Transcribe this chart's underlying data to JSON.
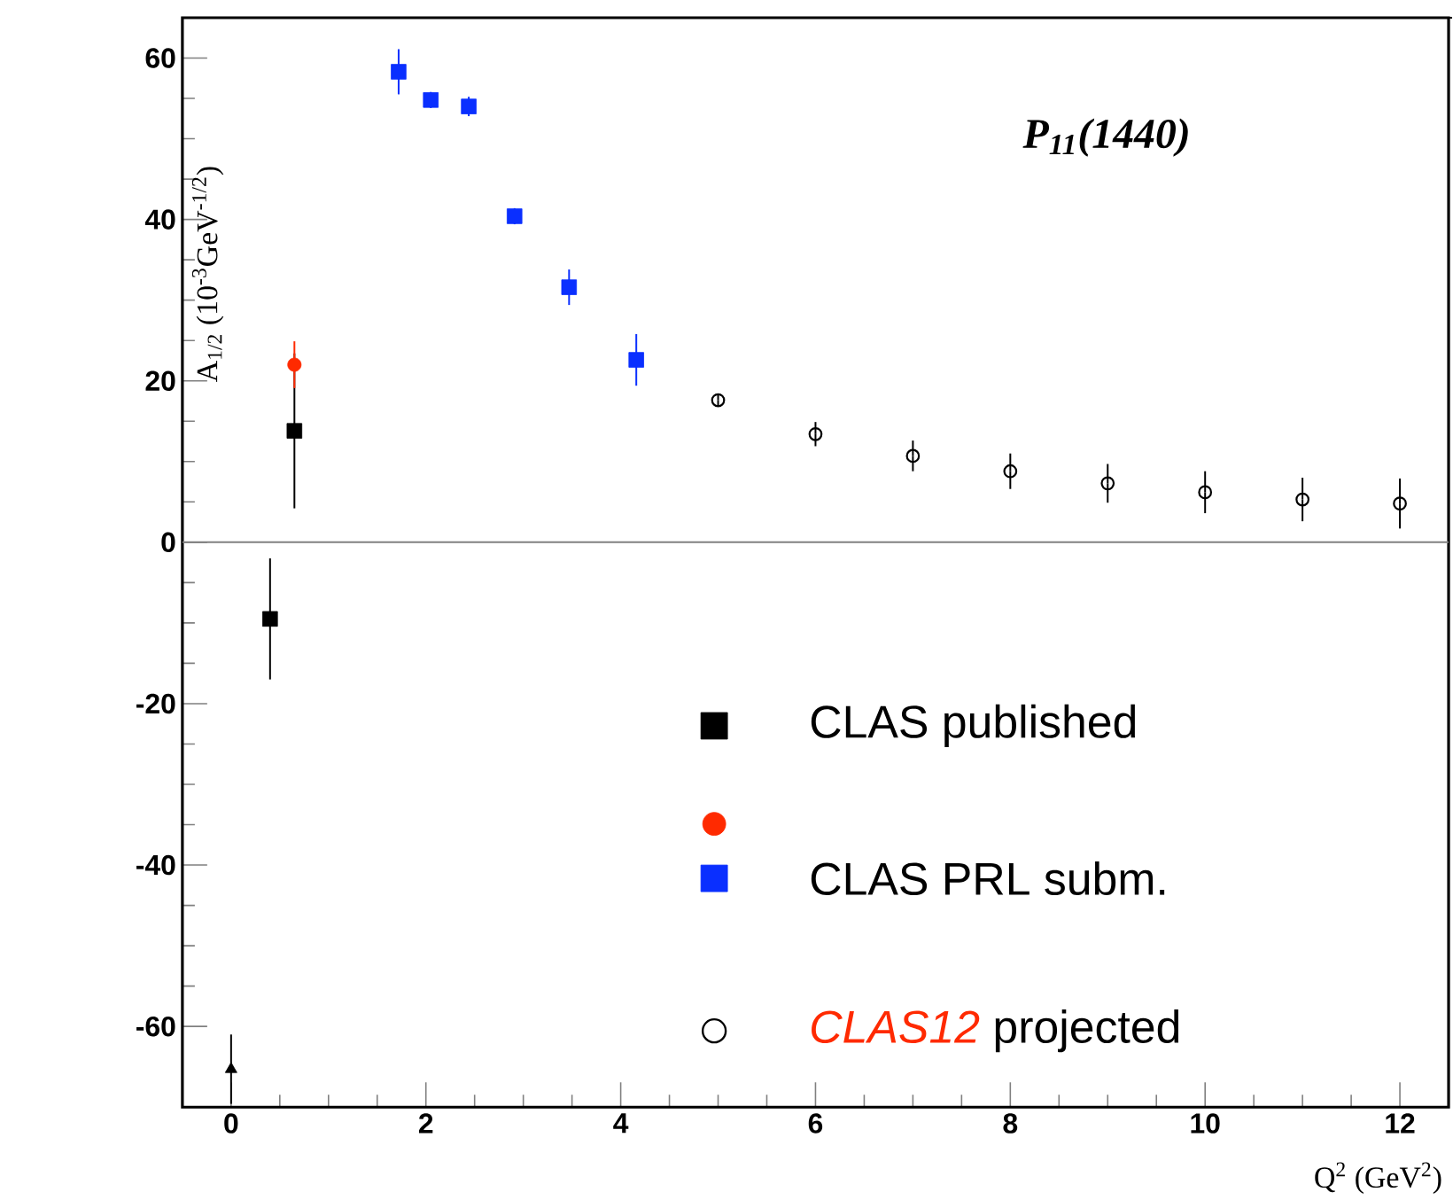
{
  "chart_data": {
    "type": "scatter",
    "title": "P$_{11}$(1440)",
    "xlabel": "Q$^{2}$ (GeV$^{2}$)",
    "ylabel": "A$_{1/2}$ (10$^{-3}$GeV$^{-1/2}$)",
    "xlim": [
      -0.5,
      12.5
    ],
    "ylim": [
      -70,
      65
    ],
    "xticks": [
      0,
      2,
      4,
      6,
      8,
      10,
      12
    ],
    "yticks": [
      -60,
      -40,
      -20,
      0,
      20,
      40,
      60
    ],
    "legend": "bottom right",
    "grid": false,
    "ref_lines": [
      {
        "axis": "y",
        "value": 0,
        "color": "#808080"
      }
    ],
    "series": [
      {
        "name": "CLAS published",
        "color": "#000000",
        "marker": "square",
        "x": [
          0.4,
          0.65
        ],
        "values": [
          -9.5,
          13.8
        ],
        "errors": [
          7.5,
          9.6
        ]
      },
      {
        "color": "#ff2a00",
        "marker": "circle",
        "x": [
          0.65
        ],
        "values": [
          22.0
        ],
        "errors": [
          2.9
        ]
      },
      {
        "color": "#000000",
        "marker": "triangle",
        "x": [
          0
        ],
        "values": [
          -65.3
        ],
        "errors": [
          4.3
        ]
      },
      {
        "name": "CLAS PRL subm.",
        "color": "#0a2fff",
        "marker": "square",
        "x": [
          1.72,
          2.05,
          2.44,
          2.91,
          3.47,
          4.16
        ],
        "values": [
          58.3,
          54.8,
          54.0,
          40.4,
          31.6,
          22.6
        ],
        "errors": [
          2.8,
          1.0,
          1.2,
          1.0,
          2.2,
          3.2
        ]
      },
      {
        "name": "*CLAS12* projected",
        "color": "#000000",
        "marker": "circle",
        "x": [
          5,
          6,
          7,
          8,
          9,
          10,
          11,
          12
        ],
        "values": [
          17.6,
          13.4,
          10.7,
          8.8,
          7.3,
          6.2,
          5.3,
          4.8
        ],
        "errors": [
          0.8,
          1.5,
          1.9,
          2.2,
          2.4,
          2.6,
          2.7,
          3.1
        ]
      }
    ]
  }
}
